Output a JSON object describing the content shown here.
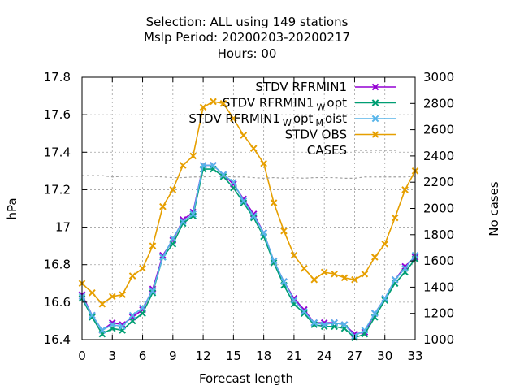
{
  "title_lines": [
    "Selection: ALL using   149 stations",
    "Mslp   Period: 20200203-20200217",
    "Hours:  00"
  ],
  "colors": {
    "rfrmin1": "#9400d3",
    "rfrmin1_wopt": "#009e73",
    "rfrmin1_wopt_moist": "#56b4e9",
    "obs": "#e69f00",
    "cases": "#a0a0a0"
  },
  "chart_data": {
    "type": "line",
    "xlabel": "Forecast length",
    "ylabel": "hPa",
    "y2label": "No cases",
    "xlim": [
      0,
      33
    ],
    "ylim": [
      16.4,
      17.8
    ],
    "y2lim": [
      1000,
      3000
    ],
    "xticks": [
      "0",
      "3",
      "6",
      "9",
      "12",
      "15",
      "18",
      "21",
      "24",
      "27",
      "30",
      "33"
    ],
    "yticks": [
      "16.4",
      "16.6",
      "16.8",
      "17",
      "17.2",
      "17.4",
      "17.6",
      "17.8"
    ],
    "y2ticks": [
      "1000",
      "1200",
      "1400",
      "1600",
      "1800",
      "2000",
      "2200",
      "2400",
      "2600",
      "2800",
      "3000"
    ],
    "grid": true,
    "legend_position": "top-right",
    "x": [
      0,
      1,
      2,
      3,
      4,
      5,
      6,
      7,
      8,
      9,
      10,
      11,
      12,
      13,
      14,
      15,
      16,
      17,
      18,
      19,
      20,
      21,
      22,
      23,
      24,
      25,
      26,
      27,
      28,
      29,
      30,
      31,
      32,
      33
    ],
    "series": [
      {
        "name": "STDV RFRMIN1",
        "label_main": "STDV RFRMIN1",
        "label_parts": [],
        "color_key": "rfrmin1",
        "marker": "x",
        "axis": "y",
        "values": [
          16.64,
          16.53,
          16.45,
          16.49,
          16.48,
          16.52,
          16.56,
          16.67,
          16.85,
          16.93,
          17.04,
          17.08,
          17.33,
          17.33,
          17.28,
          17.23,
          17.15,
          17.07,
          16.97,
          16.82,
          16.71,
          16.62,
          16.56,
          16.49,
          16.49,
          16.49,
          16.48,
          16.43,
          16.44,
          16.54,
          16.62,
          16.72,
          16.79,
          16.84
        ]
      },
      {
        "name": "STDV RFRMIN1 W opt",
        "label_main": "STDV RFRMIN1",
        "label_parts": [
          "W",
          "opt"
        ],
        "color_key": "rfrmin1_wopt",
        "marker": "x",
        "axis": "y",
        "values": [
          16.62,
          16.52,
          16.43,
          16.46,
          16.45,
          16.5,
          16.54,
          16.65,
          16.84,
          16.91,
          17.02,
          17.06,
          17.31,
          17.31,
          17.27,
          17.21,
          17.13,
          17.05,
          16.95,
          16.81,
          16.69,
          16.59,
          16.54,
          16.48,
          16.47,
          16.47,
          16.46,
          16.41,
          16.43,
          16.52,
          16.61,
          16.7,
          16.76,
          16.83
        ]
      },
      {
        "name": "STDV RFRMIN1 W opt M oist",
        "label_main": "STDV RFRMIN1",
        "label_parts": [
          "W",
          "opt",
          "M",
          "oist"
        ],
        "color_key": "rfrmin1_wopt_moist",
        "marker": "x",
        "axis": "y",
        "values": [
          16.63,
          16.53,
          16.45,
          16.48,
          16.47,
          16.53,
          16.57,
          16.66,
          16.84,
          16.94,
          17.03,
          17.07,
          17.33,
          17.33,
          17.28,
          17.24,
          17.14,
          17.06,
          16.97,
          16.82,
          16.71,
          16.61,
          16.55,
          16.49,
          16.48,
          16.49,
          16.48,
          16.42,
          16.45,
          16.54,
          16.62,
          16.72,
          16.78,
          16.85
        ]
      },
      {
        "name": "STDV OBS",
        "label_main": "STDV OBS",
        "label_parts": [],
        "color_key": "obs",
        "marker": "x",
        "axis": "y",
        "values": [
          16.7,
          16.65,
          16.59,
          16.63,
          16.64,
          16.74,
          16.78,
          16.9,
          17.11,
          17.2,
          17.33,
          17.38,
          17.64,
          17.67,
          17.66,
          17.58,
          17.49,
          17.42,
          17.34,
          17.13,
          16.98,
          16.85,
          16.78,
          16.72,
          16.76,
          16.75,
          16.73,
          16.72,
          16.75,
          16.84,
          16.91,
          17.05,
          17.2,
          17.3
        ]
      },
      {
        "name": "CASES",
        "label_main": "CASES",
        "label_parts": [],
        "color_key": "cases",
        "marker": "none",
        "dashed": true,
        "axis": "y2",
        "values": [
          2250,
          2250,
          2250,
          2240,
          2245,
          2245,
          2245,
          2245,
          2240,
          2235,
          2235,
          2240,
          2240,
          2245,
          2245,
          2240,
          2240,
          2235,
          2230,
          2235,
          2230,
          2235,
          2230,
          2235,
          2235,
          2235,
          2230,
          2230,
          2240,
          2240,
          2240,
          2240,
          2240,
          2245
        ]
      }
    ]
  }
}
